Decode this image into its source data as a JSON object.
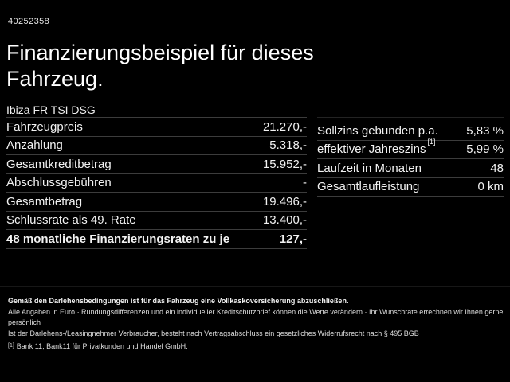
{
  "page": {
    "background_color": "#000000",
    "text_color": "#f2f2f2",
    "divider_color": "#3c3c3c"
  },
  "header": {
    "reference_number": "40252358",
    "title": "Finanzierungsbeispiel für dieses Fahrzeug.",
    "vehicle_name": "Ibiza FR TSI DSG"
  },
  "finance_table": {
    "rows": [
      {
        "label": "Fahrzeugpreis",
        "value": "21.270,-"
      },
      {
        "label": "Anzahlung",
        "value": "5.318,-"
      },
      {
        "label": "Gesamtkreditbetrag",
        "value": "15.952,-"
      },
      {
        "label": "Abschlussgebühren",
        "value": "-"
      },
      {
        "label": "Gesamtbetrag",
        "value": "19.496,-"
      },
      {
        "label": "Schlussrate als 49. Rate",
        "value": "13.400,-"
      },
      {
        "label": "48 monatliche Finanzierungsraten zu je",
        "value": "127,-"
      }
    ]
  },
  "conditions_table": {
    "rows": [
      {
        "label": "Sollzins gebunden p.a.",
        "value": "5,83 %"
      },
      {
        "label": "effektiver Jahreszins",
        "sup": "[1]",
        "value": "5,99 %"
      },
      {
        "label": "Laufzeit in Monaten",
        "value": "48"
      },
      {
        "label": "Gesamtlaufleistung",
        "value": "0 km"
      }
    ]
  },
  "footer": {
    "insurance_note": "Gemäß den Darlehensbedingungen ist für das Fahrzeug eine Vollkaskoversicherung abzuschließen.",
    "disclaimer_line1": "Alle Angaben in Euro · Rundungsdifferenzen und ein individueller Kreditschutzbrief können die Werte verändern · Ihr Wunschrate errechnen wir Ihnen gerne persönlich",
    "disclaimer_line2": "Ist der Darlehens-/Leasingnehmer Verbraucher, besteht nach Vertragsabschluss ein gesetzliches Widerrufsrecht nach § 495 BGB",
    "footnote_marker": "[1]",
    "footnote_text": "Bank 11, Bank11 für Privatkunden und Handel GmbH."
  }
}
